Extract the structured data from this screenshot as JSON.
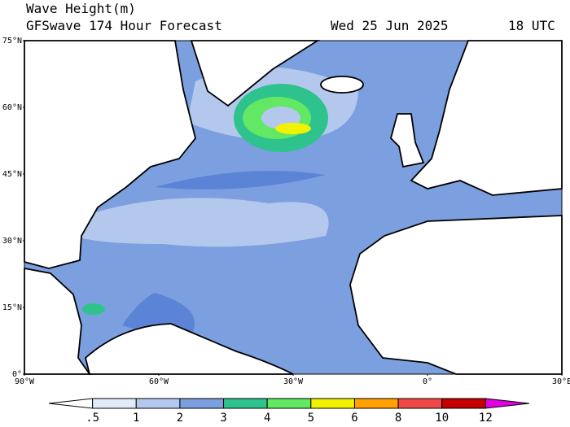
{
  "header": {
    "title": "Wave Height(m)",
    "subtitle": "GFSwave 174 Hour Forecast",
    "date": "Wed 25 Jun 2025",
    "time": "18 UTC"
  },
  "map": {
    "lat_labels": [
      "75°N",
      "60°N",
      "45°N",
      "30°N",
      "15°N",
      "0°"
    ],
    "lon_labels": [
      "90°W",
      "60°W",
      "30°W",
      "0°",
      "30°E"
    ]
  },
  "colorbar": {
    "labels": [
      ".5",
      "1",
      "2",
      "3",
      "4",
      "5",
      "6",
      "8",
      "10",
      "12"
    ],
    "colors": [
      "#ffffff",
      "#e1ebf9",
      "#b4c8ee",
      "#7c9fe0",
      "#2ec38c",
      "#62e862",
      "#f2f200",
      "#ffa000",
      "#f04848",
      "#c40000",
      "#e000e0"
    ]
  }
}
